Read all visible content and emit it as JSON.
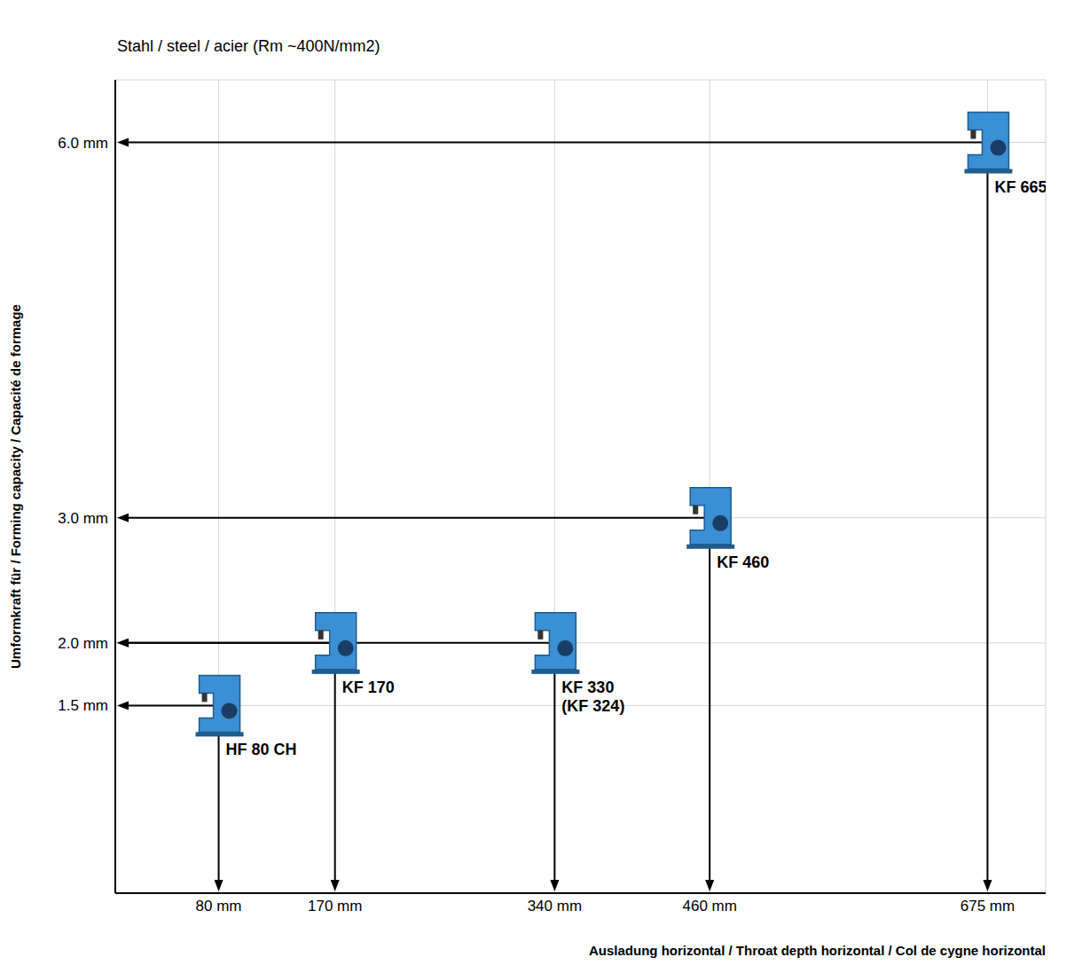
{
  "chart_data": {
    "type": "scatter",
    "title": "Stahl / steel / acier  (Rm ~400N/mm2)",
    "x_label": "Ausladung horizontal / Throat depth horizontal / Col de cygne horizontal",
    "y_label": "Umformkraft für / Forming capacity / Capacité de formage",
    "point_labels": [
      "HF 80 CH",
      "KF 170",
      "KF 330 (KF 324)",
      "KF 460",
      "KF 665"
    ],
    "x": [
      80,
      170,
      340,
      460,
      675
    ],
    "values": [
      1.5,
      2.0,
      2.0,
      3.0,
      6.0
    ],
    "color": "#3b8fd4",
    "xlim": [
      0,
      720
    ],
    "ylim": [
      0,
      6.5
    ],
    "xticks": [
      {
        "value": 80,
        "label": "80 mm"
      },
      {
        "value": 170,
        "label": "170 mm"
      },
      {
        "value": 340,
        "label": "340 mm"
      },
      {
        "value": 460,
        "label": "460 mm"
      },
      {
        "value": 675,
        "label": "675 mm"
      }
    ],
    "yticks": [
      {
        "value": 1.5,
        "label": "1.5 mm"
      },
      {
        "value": 2.0,
        "label": "2.0 mm"
      },
      {
        "value": 3.0,
        "label": "3.0 mm"
      },
      {
        "value": 6.0,
        "label": "6.0 mm"
      }
    ],
    "grid": true
  }
}
